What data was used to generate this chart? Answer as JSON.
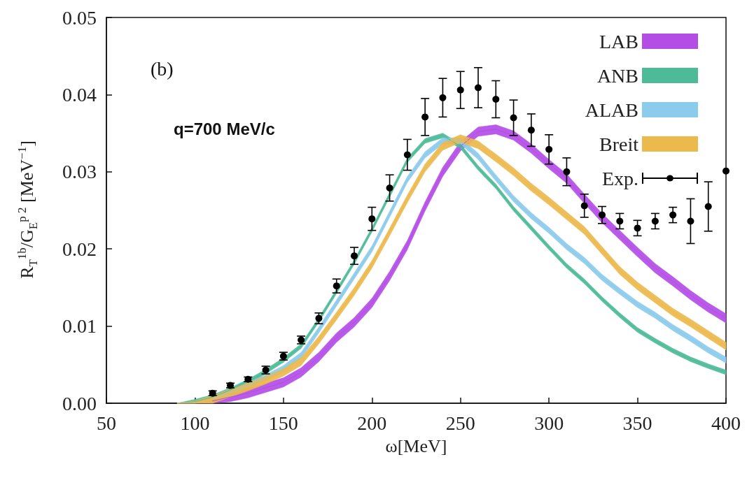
{
  "chart_data": {
    "type": "line",
    "xlabel": "ω[MeV]",
    "ylabel": "R$_{T}$$^{1b}$/G$_{E}$$^{p 2}$ [MeV$^{−1}$]",
    "annotations": [
      "(b)",
      "q=700 MeV/c"
    ],
    "xlim": [
      50,
      400
    ],
    "xticks": [
      50,
      100,
      150,
      200,
      250,
      300,
      350,
      400
    ],
    "ylim": [
      0,
      0.05
    ],
    "yticks": [
      {
        "value": 0,
        "label": "0.00"
      },
      {
        "value": 0.01,
        "label": "0.01"
      },
      {
        "value": 0.02,
        "label": "0.02"
      },
      {
        "value": 0.03,
        "label": "0.03"
      },
      {
        "value": 0.04,
        "label": "0.04"
      },
      {
        "value": 0.05,
        "label": "0.05"
      }
    ],
    "grid": false,
    "legend": "top right",
    "x": [
      90,
      100,
      110,
      120,
      130,
      140,
      150,
      160,
      170,
      180,
      190,
      200,
      210,
      220,
      230,
      240,
      250,
      260,
      270,
      280,
      290,
      300,
      310,
      320,
      330,
      340,
      350,
      360,
      370,
      380,
      390,
      400
    ],
    "series": [
      {
        "name": "LAB",
        "color": "#b44ce6",
        "values": [
          null,
          null,
          0.0003,
          0.0008,
          0.0013,
          0.002,
          0.0027,
          0.004,
          0.006,
          0.0085,
          0.0105,
          0.013,
          0.0165,
          0.0205,
          0.0255,
          0.03,
          0.0333,
          0.0352,
          0.0355,
          0.0347,
          0.033,
          0.031,
          0.0291,
          0.0265,
          0.024,
          0.0218,
          0.0196,
          0.0175,
          0.0158,
          0.014,
          0.0124,
          0.011
        ],
        "lower": [
          0,
          0,
          0,
          0.0002,
          0.0007,
          0.0014,
          0.0021,
          0.0034,
          0.0054,
          0.0079,
          0.0099,
          0.0124,
          0.0159,
          0.0199,
          0.0249,
          0.0294,
          0.0327,
          0.0346,
          0.0349,
          0.0341,
          0.0324,
          0.0304,
          0.0285,
          0.0259,
          0.0234,
          0.0212,
          0.019,
          0.0169,
          0.0152,
          0.0134,
          0.0118,
          0.0104
        ],
        "upper": [
          0,
          0.0003,
          0.0009,
          0.0014,
          0.0019,
          0.0026,
          0.0033,
          0.0046,
          0.0066,
          0.0091,
          0.0111,
          0.0136,
          0.0171,
          0.0211,
          0.0261,
          0.0306,
          0.0339,
          0.0358,
          0.0361,
          0.0353,
          0.0336,
          0.0316,
          0.0297,
          0.0271,
          0.0246,
          0.0224,
          0.0202,
          0.0181,
          0.0164,
          0.0146,
          0.013,
          0.0116
        ]
      },
      {
        "name": "ANB",
        "color": "#4dbb98",
        "values": [
          0,
          0.0002,
          0.0008,
          0.0017,
          0.0028,
          0.0041,
          0.0056,
          0.0074,
          0.0108,
          0.0145,
          0.0183,
          0.0225,
          0.027,
          0.0315,
          0.034,
          0.0347,
          0.0333,
          0.0305,
          0.0281,
          0.0252,
          0.0227,
          0.0202,
          0.0178,
          0.0158,
          0.0135,
          0.0114,
          0.0095,
          0.0081,
          0.0068,
          0.0057,
          0.0048,
          0.004
        ],
        "lower": [
          0,
          0,
          0.0005,
          0.0014,
          0.0025,
          0.0038,
          0.0053,
          0.0071,
          0.0105,
          0.0142,
          0.018,
          0.0222,
          0.0267,
          0.0312,
          0.0337,
          0.0344,
          0.033,
          0.0302,
          0.0278,
          0.0249,
          0.0224,
          0.0199,
          0.0175,
          0.0155,
          0.0132,
          0.0111,
          0.0092,
          0.0078,
          0.0065,
          0.0054,
          0.0045,
          0.0037
        ],
        "upper": [
          0,
          0.0005,
          0.0011,
          0.002,
          0.0031,
          0.0044,
          0.0059,
          0.0077,
          0.0111,
          0.0148,
          0.0186,
          0.0228,
          0.0273,
          0.0318,
          0.0343,
          0.035,
          0.0336,
          0.0308,
          0.0284,
          0.0255,
          0.023,
          0.0205,
          0.0181,
          0.0161,
          0.0138,
          0.0117,
          0.0098,
          0.0084,
          0.0071,
          0.006,
          0.0051,
          0.0043
        ]
      },
      {
        "name": "ALAB",
        "color": "#8bcbec",
        "values": [
          null,
          null,
          0.0006,
          0.0014,
          0.0023,
          0.0033,
          0.0045,
          0.0062,
          0.0095,
          0.013,
          0.0165,
          0.02,
          0.0245,
          0.029,
          0.0322,
          0.034,
          0.034,
          0.032,
          0.0292,
          0.0265,
          0.0243,
          0.0224,
          0.0203,
          0.0185,
          0.0163,
          0.0145,
          0.0128,
          0.0114,
          0.0098,
          0.0084,
          0.0069,
          0.0056
        ],
        "lower": [
          0,
          0,
          0.0002,
          0.001,
          0.0019,
          0.0029,
          0.0041,
          0.0058,
          0.0091,
          0.0126,
          0.0161,
          0.0196,
          0.0241,
          0.0286,
          0.0318,
          0.0336,
          0.0336,
          0.0316,
          0.0288,
          0.0261,
          0.0239,
          0.022,
          0.0199,
          0.0181,
          0.0159,
          0.0141,
          0.0124,
          0.011,
          0.0094,
          0.008,
          0.0065,
          0.0052
        ],
        "upper": [
          0,
          0.0003,
          0.001,
          0.0018,
          0.0027,
          0.0037,
          0.0049,
          0.0066,
          0.0099,
          0.0134,
          0.0169,
          0.0204,
          0.0249,
          0.0294,
          0.0326,
          0.0344,
          0.0344,
          0.0324,
          0.0296,
          0.0269,
          0.0247,
          0.0228,
          0.0207,
          0.0189,
          0.0167,
          0.0149,
          0.0132,
          0.0118,
          0.0102,
          0.0088,
          0.0073,
          0.006
        ]
      },
      {
        "name": "Breit",
        "color": "#ecb94c",
        "values": [
          0,
          0.0001,
          0.0005,
          0.0013,
          0.0021,
          0.003,
          0.004,
          0.0054,
          0.0082,
          0.0113,
          0.0145,
          0.018,
          0.0222,
          0.0265,
          0.0305,
          0.0333,
          0.0343,
          0.0335,
          0.0318,
          0.03,
          0.028,
          0.0262,
          0.0243,
          0.0224,
          0.0198,
          0.0172,
          0.0152,
          0.0135,
          0.0118,
          0.0104,
          0.0089,
          0.0074
        ],
        "lower": [
          0,
          0,
          0,
          0.0008,
          0.0016,
          0.0025,
          0.0035,
          0.0049,
          0.0077,
          0.0108,
          0.014,
          0.0175,
          0.0217,
          0.026,
          0.03,
          0.0328,
          0.0338,
          0.033,
          0.0313,
          0.0295,
          0.0275,
          0.0257,
          0.0238,
          0.0219,
          0.0193,
          0.0167,
          0.0147,
          0.013,
          0.0113,
          0.0099,
          0.0084,
          0.0069
        ],
        "upper": [
          0,
          0.0003,
          0.001,
          0.0018,
          0.0026,
          0.0035,
          0.0045,
          0.0059,
          0.0087,
          0.0118,
          0.015,
          0.0185,
          0.0227,
          0.027,
          0.031,
          0.0338,
          0.0348,
          0.034,
          0.0323,
          0.0305,
          0.0285,
          0.0267,
          0.0248,
          0.0229,
          0.0203,
          0.0177,
          0.0157,
          0.014,
          0.0123,
          0.0109,
          0.0094,
          0.0079
        ]
      },
      {
        "name": "Exp.",
        "type": "scatter",
        "color": "#000000",
        "marker": "circle",
        "x": [
          110,
          120,
          130,
          140,
          150,
          160,
          170,
          180,
          190,
          200,
          210,
          220,
          230,
          240,
          250,
          260,
          270,
          280,
          290,
          300,
          310,
          320,
          330,
          340,
          350,
          360,
          370,
          380,
          390,
          400
        ],
        "values": [
          0.0013,
          0.0023,
          0.0031,
          0.0043,
          0.0061,
          0.0082,
          0.011,
          0.0152,
          0.0191,
          0.0239,
          0.0279,
          0.0322,
          0.0371,
          0.0396,
          0.0406,
          0.0409,
          0.0394,
          0.037,
          0.0354,
          0.0329,
          0.03,
          0.0256,
          0.0244,
          0.0236,
          0.0227,
          0.0236,
          0.0244,
          0.0236,
          0.0255,
          0.0301
        ],
        "errors": [
          0.0003,
          0.0003,
          0.0003,
          0.0005,
          0.0005,
          0.0005,
          0.0007,
          0.0009,
          0.0011,
          0.0015,
          0.0017,
          0.002,
          0.0024,
          0.0025,
          0.0024,
          0.0026,
          0.0024,
          0.0023,
          0.0021,
          0.0019,
          0.0018,
          0.0015,
          0.0011,
          0.001,
          0.001,
          0.001,
          0.001,
          0.0029,
          0.0032,
          null
        ]
      }
    ]
  }
}
